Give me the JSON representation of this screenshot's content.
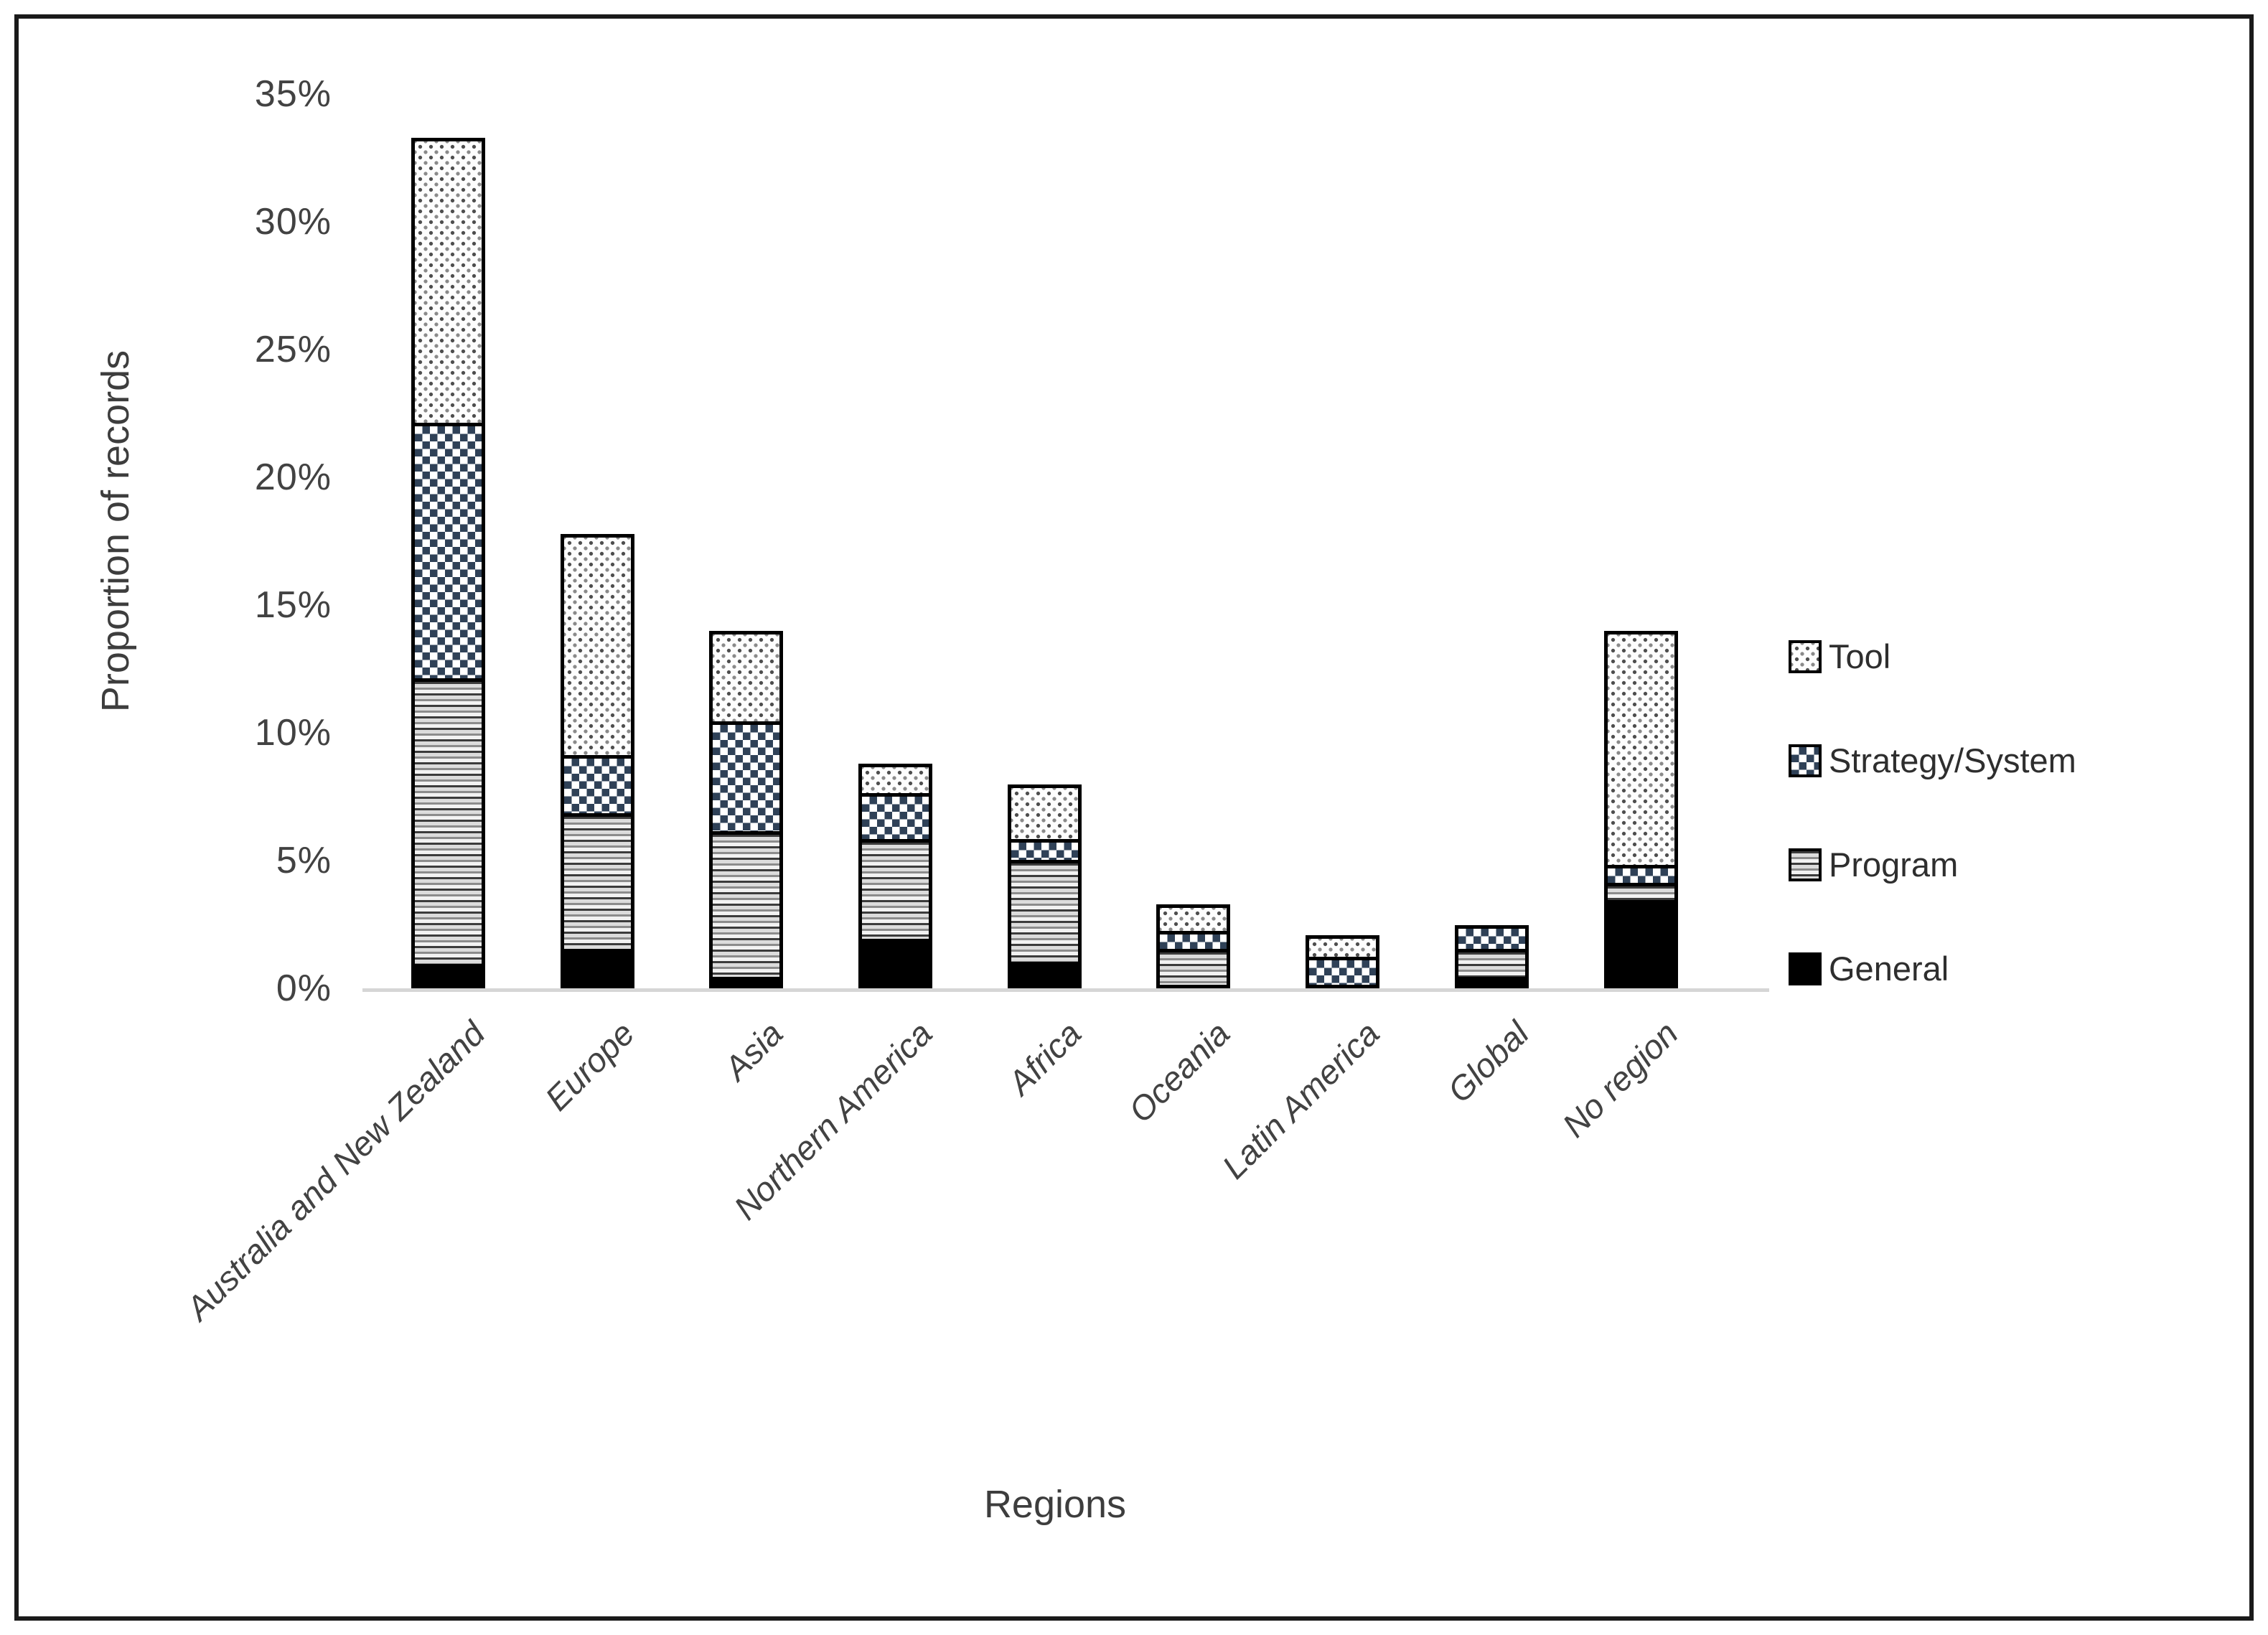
{
  "chart_data": {
    "type": "bar",
    "stacked": true,
    "xlabel": "Regions",
    "ylabel": "Proportion of records",
    "ylim": [
      0,
      35
    ],
    "ytick_step": 5,
    "ytick_labels": [
      "0%",
      "5%",
      "10%",
      "15%",
      "20%",
      "25%",
      "30%",
      "35%"
    ],
    "grid": false,
    "categories": [
      "Australia and New Zealand",
      "Europe",
      "Asia",
      "Northern America",
      "Africa",
      "Oceania",
      "Latin America",
      "Global",
      "No region"
    ],
    "series": [
      {
        "name": "General",
        "values": [
          0.8,
          1.4,
          0.3,
          1.8,
          0.9,
          0.0,
          0.0,
          0.3,
          3.3
        ]
      },
      {
        "name": "Program",
        "values": [
          11.2,
          5.3,
          5.7,
          3.9,
          4.0,
          1.4,
          0.0,
          1.1,
          0.7
        ]
      },
      {
        "name": "Strategy/System",
        "values": [
          10.0,
          2.3,
          4.3,
          1.8,
          0.8,
          0.7,
          1.1,
          0.8,
          0.7
        ]
      },
      {
        "name": "Tool",
        "values": [
          11.0,
          8.5,
          3.4,
          1.0,
          2.0,
          0.9,
          0.7,
          0.0,
          9.0
        ]
      }
    ],
    "bar_totals": [
      33.0,
      17.5,
      13.7,
      8.5,
      7.7,
      3.0,
      1.8,
      2.2,
      13.7
    ],
    "legend": {
      "position": "right",
      "entries": [
        "Tool",
        "Strategy/System",
        "Program",
        "General"
      ]
    }
  },
  "colors": {
    "strategy_navy": "#2f4157",
    "text_gray": "#424242",
    "baseline_gray": "#d6d6d6",
    "general_black": "#000000",
    "background": "#ffffff"
  }
}
